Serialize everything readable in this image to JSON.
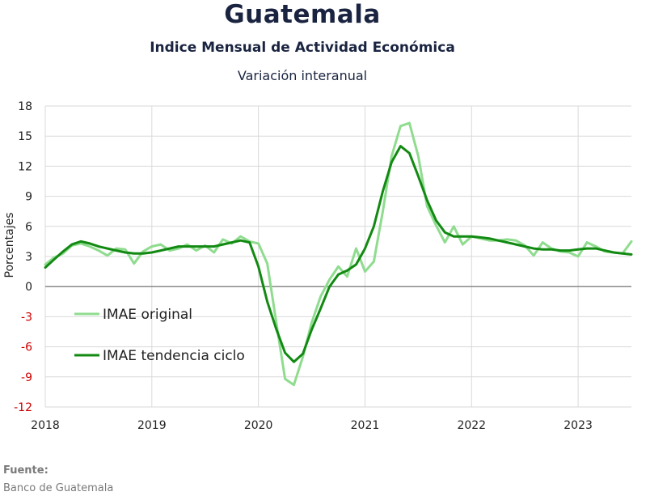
{
  "header": {
    "title": "Guatemala",
    "subtitle": "Indice Mensual de  Actividad Económica",
    "subtitle2": "Variación interanual"
  },
  "footer": {
    "source_label": "Fuente:",
    "source_value": "Banco de Guatemala"
  },
  "colors": {
    "original": "#8fdc8f",
    "trend": "#128a12",
    "negative_tick": "#cc0000",
    "zero_line": "#8a8a8a",
    "grid": "#d9d9d9"
  },
  "chart_data": {
    "type": "line",
    "ylabel": "Porcentajes",
    "xlabel": "",
    "ylim": [
      -12,
      18
    ],
    "yticks": [
      18,
      15,
      12,
      9,
      6,
      3,
      0,
      -3,
      -6,
      -9,
      -12
    ],
    "xlim": [
      2018,
      2023.5
    ],
    "xticks": [
      2018,
      2019,
      2020,
      2021,
      2022,
      2023
    ],
    "grid": "vertical-and-horizontal",
    "legend_position": "bottom-left",
    "series": [
      {
        "name": "IMAE original",
        "x": [
          2018.0,
          2018.083,
          2018.167,
          2018.25,
          2018.333,
          2018.417,
          2018.5,
          2018.583,
          2018.667,
          2018.75,
          2018.833,
          2018.917,
          2019.0,
          2019.083,
          2019.167,
          2019.25,
          2019.333,
          2019.417,
          2019.5,
          2019.583,
          2019.667,
          2019.75,
          2019.833,
          2019.917,
          2020.0,
          2020.083,
          2020.167,
          2020.25,
          2020.333,
          2020.417,
          2020.5,
          2020.583,
          2020.667,
          2020.75,
          2020.833,
          2020.917,
          2021.0,
          2021.083,
          2021.167,
          2021.25,
          2021.333,
          2021.417,
          2021.5,
          2021.583,
          2021.667,
          2021.75,
          2021.833,
          2021.917,
          2022.0,
          2022.083,
          2022.167,
          2022.25,
          2022.333,
          2022.417,
          2022.5,
          2022.583,
          2022.667,
          2022.75,
          2022.833,
          2022.917,
          2023.0,
          2023.083,
          2023.167,
          2023.25,
          2023.333,
          2023.417,
          2023.5
        ],
        "y": [
          2.2,
          2.9,
          3.3,
          4.1,
          4.3,
          4.0,
          3.6,
          3.1,
          3.8,
          3.7,
          2.3,
          3.5,
          4.0,
          4.2,
          3.6,
          3.8,
          4.2,
          3.6,
          4.1,
          3.4,
          4.7,
          4.3,
          5.0,
          4.5,
          4.3,
          2.3,
          -3.5,
          -9.2,
          -9.8,
          -7.0,
          -3.6,
          -1.0,
          0.7,
          2.0,
          1.0,
          3.8,
          1.5,
          2.5,
          7.5,
          13.0,
          16.0,
          16.3,
          13.0,
          8.0,
          6.1,
          4.4,
          6.0,
          4.2,
          5.0,
          4.8,
          4.6,
          4.6,
          4.7,
          4.6,
          4.1,
          3.1,
          4.4,
          3.8,
          3.5,
          3.4,
          3.0,
          4.4,
          4.0,
          3.5,
          3.4,
          3.3,
          4.5
        ]
      },
      {
        "name": "IMAE tendencia ciclo",
        "x": [
          2018.0,
          2018.083,
          2018.167,
          2018.25,
          2018.333,
          2018.417,
          2018.5,
          2018.583,
          2018.667,
          2018.75,
          2018.833,
          2018.917,
          2019.0,
          2019.083,
          2019.167,
          2019.25,
          2019.333,
          2019.417,
          2019.5,
          2019.583,
          2019.667,
          2019.75,
          2019.833,
          2019.917,
          2020.0,
          2020.083,
          2020.167,
          2020.25,
          2020.333,
          2020.417,
          2020.5,
          2020.583,
          2020.667,
          2020.75,
          2020.833,
          2020.917,
          2021.0,
          2021.083,
          2021.167,
          2021.25,
          2021.333,
          2021.417,
          2021.5,
          2021.583,
          2021.667,
          2021.75,
          2021.833,
          2021.917,
          2022.0,
          2022.083,
          2022.167,
          2022.25,
          2022.333,
          2022.417,
          2022.5,
          2022.583,
          2022.667,
          2022.75,
          2022.833,
          2022.917,
          2023.0,
          2023.083,
          2023.167,
          2023.25,
          2023.333,
          2023.417,
          2023.5
        ],
        "y": [
          1.9,
          2.7,
          3.5,
          4.2,
          4.5,
          4.3,
          4.0,
          3.8,
          3.6,
          3.4,
          3.3,
          3.3,
          3.4,
          3.6,
          3.8,
          4.0,
          4.0,
          4.0,
          4.0,
          4.0,
          4.2,
          4.4,
          4.6,
          4.4,
          2.0,
          -1.5,
          -4.2,
          -6.6,
          -7.5,
          -6.7,
          -4.3,
          -2.2,
          0.0,
          1.2,
          1.6,
          2.2,
          3.8,
          6.0,
          9.5,
          12.4,
          14.0,
          13.3,
          11.0,
          8.6,
          6.6,
          5.4,
          5.0,
          5.0,
          5.0,
          4.9,
          4.8,
          4.6,
          4.4,
          4.2,
          4.0,
          3.8,
          3.7,
          3.7,
          3.6,
          3.6,
          3.7,
          3.8,
          3.8,
          3.6,
          3.4,
          3.3,
          3.2
        ]
      }
    ]
  }
}
